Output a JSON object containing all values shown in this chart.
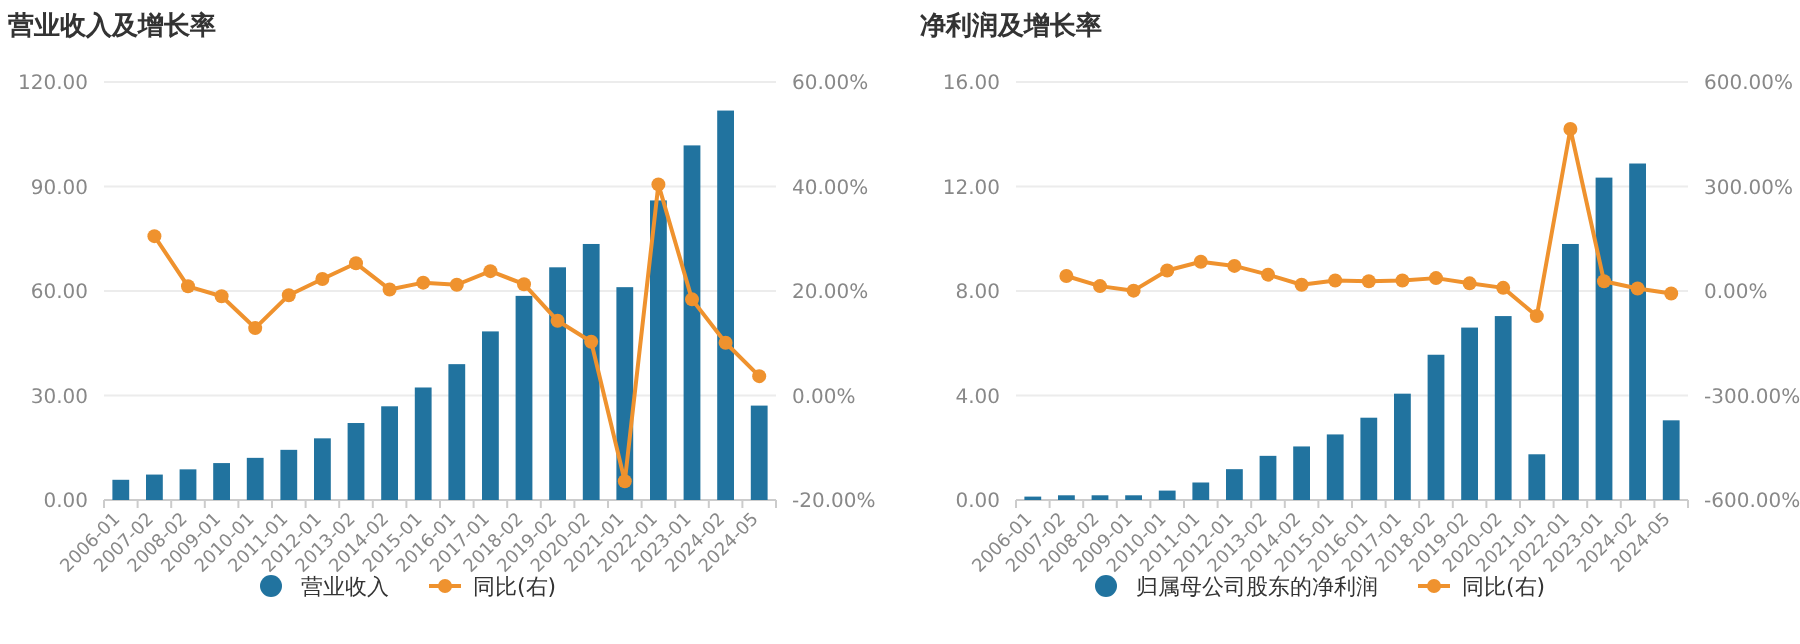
{
  "chart_data": [
    {
      "type": "bar",
      "title": "营业收入及增长率",
      "categories": [
        "2006-01",
        "2007-02",
        "2008-02",
        "2009-01",
        "2010-01",
        "2011-01",
        "2012-01",
        "2013-02",
        "2014-02",
        "2015-01",
        "2016-01",
        "2017-01",
        "2018-02",
        "2019-02",
        "2020-02",
        "2021-01",
        "2022-01",
        "2023-01",
        "2024-02",
        "2024-05"
      ],
      "series": [
        {
          "name": "营业收入",
          "color": "#21739f",
          "values": [
            5.8,
            7.3,
            8.8,
            10.6,
            12.1,
            14.4,
            17.7,
            22.1,
            26.9,
            32.3,
            39.0,
            48.4,
            58.6,
            66.8,
            73.5,
            61.1,
            86.0,
            101.8,
            111.8,
            27.1
          ]
        },
        {
          "name": "同比(右)",
          "type": "line",
          "axis": "y2",
          "color": "#ef922e",
          "values": [
            null,
            30.5,
            20.9,
            19.0,
            12.9,
            19.2,
            22.3,
            25.3,
            20.3,
            21.6,
            21.2,
            23.8,
            21.3,
            14.3,
            10.3,
            -16.4,
            40.4,
            18.4,
            10.1,
            3.7
          ]
        }
      ],
      "ylim": [
        0,
        120
      ],
      "yticks": [
        {
          "value": 0,
          "label": "0.00"
        },
        {
          "value": 30,
          "label": "30.00"
        },
        {
          "value": 60,
          "label": "60.00"
        },
        {
          "value": 90,
          "label": "90.00"
        },
        {
          "value": 120,
          "label": "120.00"
        }
      ],
      "y2lim": [
        -20,
        60
      ],
      "y2ticks": [
        {
          "value": -20,
          "label": "-20.00%"
        },
        {
          "value": 0,
          "label": "0.00%"
        },
        {
          "value": 20,
          "label": "20.00%"
        },
        {
          "value": 40,
          "label": "40.00%"
        },
        {
          "value": 60,
          "label": "60.00%"
        }
      ],
      "grid": "y",
      "legend": "bottom",
      "marker": "circle"
    },
    {
      "type": "bar",
      "title": "净利润及增长率",
      "categories": [
        "2006-01",
        "2007-02",
        "2008-02",
        "2009-01",
        "2010-01",
        "2011-01",
        "2012-01",
        "2013-02",
        "2014-02",
        "2015-01",
        "2016-01",
        "2017-01",
        "2018-02",
        "2019-02",
        "2020-02",
        "2021-01",
        "2022-01",
        "2023-01",
        "2024-02",
        "2024-05"
      ],
      "series": [
        {
          "name": "归属母公司股东的净利润",
          "color": "#21739f",
          "values": [
            0.13,
            0.18,
            0.18,
            0.18,
            0.36,
            0.67,
            1.18,
            1.69,
            2.05,
            2.51,
            3.15,
            4.07,
            5.56,
            6.6,
            7.04,
            1.75,
            9.8,
            12.34,
            12.88,
            3.05
          ]
        },
        {
          "name": "同比(右)",
          "type": "line",
          "axis": "y2",
          "color": "#ef922e",
          "values": [
            null,
            43,
            14,
            1,
            59,
            84,
            72,
            47,
            18,
            30,
            28,
            30,
            37,
            22,
            9,
            -72,
            465,
            28,
            7,
            -7
          ]
        }
      ],
      "ylim": [
        0,
        16
      ],
      "yticks": [
        {
          "value": 0,
          "label": "0.00"
        },
        {
          "value": 4,
          "label": "4.00"
        },
        {
          "value": 8,
          "label": "8.00"
        },
        {
          "value": 12,
          "label": "12.00"
        },
        {
          "value": 16,
          "label": "16.00"
        }
      ],
      "y2lim": [
        -600,
        600
      ],
      "y2ticks": [
        {
          "value": -600,
          "label": "-600.00%"
        },
        {
          "value": -300,
          "label": "-300.00%"
        },
        {
          "value": 0,
          "label": "0.00%"
        },
        {
          "value": 300,
          "label": "300.00%"
        },
        {
          "value": 600,
          "label": "600.00%"
        }
      ],
      "grid": "y",
      "legend": "bottom",
      "marker": "circle"
    }
  ]
}
